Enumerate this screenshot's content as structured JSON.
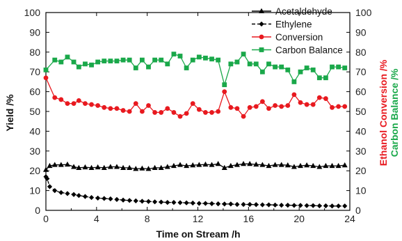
{
  "chart_data": {
    "type": "line",
    "title": "",
    "xlabel": "Time on Stream /h",
    "ylabel_left": "Yield /%",
    "ylabel_right_1": "Ethanol Conversion /%",
    "ylabel_right_2": "Carbon Balance /%",
    "xlim": [
      0,
      24
    ],
    "ylim": [
      0,
      100
    ],
    "y2lim": [
      0,
      100
    ],
    "x_ticks": [
      0,
      4,
      8,
      12,
      16,
      20,
      24
    ],
    "y_ticks": [
      0,
      10,
      20,
      30,
      40,
      50,
      60,
      70,
      80,
      90,
      100
    ],
    "grid": false,
    "legend_position": "top-right",
    "colors": {
      "acetaldehyde": "#000000",
      "ethylene": "#000000",
      "conversion": "#e8191f",
      "carbon_balance": "#1aa84a",
      "conversion_axis_label": "#e8191f",
      "carbon_balance_axis_label": "#1aa84a"
    },
    "series": [
      {
        "name": "Acetaldehyde",
        "axis": "left",
        "marker": "triangle",
        "line": "solid",
        "x": [
          0,
          0.3,
          0.7,
          1.2,
          1.7,
          2.2,
          2.6,
          3.1,
          3.6,
          4.1,
          4.6,
          5.1,
          5.6,
          6.1,
          6.6,
          7.1,
          7.6,
          8.1,
          8.6,
          9.1,
          9.6,
          10.1,
          10.6,
          11.1,
          11.6,
          12.1,
          12.6,
          13.1,
          13.6,
          14.1,
          14.6,
          15.1,
          15.6,
          16.1,
          16.6,
          17.1,
          17.6,
          18.1,
          18.6,
          19.1,
          19.6,
          20.1,
          20.6,
          21.1,
          21.6,
          22.1,
          22.6,
          23.1,
          23.6
        ],
        "values": [
          20.5,
          22.5,
          23,
          23,
          23.2,
          22,
          21.5,
          21.8,
          21.5,
          21.8,
          21.5,
          22,
          22,
          21.5,
          21.5,
          21,
          21.2,
          21,
          21.5,
          21.5,
          22,
          22.5,
          23,
          22.5,
          22.8,
          23,
          23.2,
          23,
          23.5,
          21.5,
          22.5,
          23,
          23.5,
          23.5,
          23.2,
          23,
          22.5,
          23,
          23,
          22.8,
          22,
          22.5,
          22.8,
          22.5,
          22,
          22.5,
          22.5,
          22.5,
          22.8
        ]
      },
      {
        "name": "Ethylene",
        "axis": "left",
        "marker": "diamond",
        "line": "dashed",
        "x": [
          0,
          0.1,
          0.3,
          0.7,
          1.2,
          1.7,
          2.2,
          2.6,
          3.1,
          3.6,
          4.1,
          4.6,
          5.1,
          5.6,
          6.1,
          6.6,
          7.1,
          7.6,
          8.1,
          8.6,
          9.1,
          9.6,
          10.1,
          10.6,
          11.1,
          11.6,
          12.1,
          12.6,
          13.1,
          13.6,
          14.1,
          14.6,
          15.1,
          15.6,
          16.1,
          16.6,
          17.1,
          17.6,
          18.1,
          18.6,
          19.1,
          19.6,
          20.1,
          20.6,
          21.1,
          21.6,
          22.1,
          22.6,
          23.1,
          23.6
        ],
        "values": [
          17,
          16,
          12,
          10,
          9,
          8.5,
          8,
          7.5,
          7,
          6.5,
          6.2,
          6,
          5.8,
          5.5,
          5.2,
          5,
          4.8,
          4.6,
          4.5,
          4.3,
          4.2,
          4,
          4,
          3.9,
          3.8,
          3.7,
          3.5,
          3.5,
          3.4,
          3.3,
          3.2,
          3.2,
          3,
          3,
          3,
          2.9,
          2.8,
          2.8,
          2.7,
          2.6,
          2.6,
          2.5,
          2.5,
          2.4,
          2.4,
          2.3,
          2.3,
          2.2,
          2.2,
          2.2
        ]
      },
      {
        "name": "Conversion",
        "axis": "right",
        "marker": "circle",
        "line": "solid",
        "x": [
          0,
          0.7,
          1.2,
          1.7,
          2.2,
          2.6,
          3.1,
          3.6,
          4.1,
          4.6,
          5.1,
          5.6,
          6.1,
          6.6,
          7.1,
          7.6,
          8.1,
          8.6,
          9.1,
          9.6,
          10.1,
          10.6,
          11.1,
          11.6,
          12.1,
          12.6,
          13.1,
          13.6,
          14.1,
          14.6,
          15.1,
          15.6,
          16.1,
          16.6,
          17.1,
          17.6,
          18.1,
          18.6,
          19.1,
          19.6,
          20.1,
          20.6,
          21.1,
          21.6,
          22.1,
          22.6,
          23.1,
          23.6
        ],
        "values": [
          67,
          57,
          56,
          54,
          54,
          55.5,
          54,
          53.5,
          53,
          52,
          51.5,
          51.5,
          50.5,
          50,
          54,
          50,
          53,
          49.5,
          49.5,
          51.5,
          49.5,
          47.5,
          49,
          54,
          51,
          49.5,
          49.5,
          50,
          60,
          52,
          51.5,
          47.5,
          52,
          52.5,
          55,
          51.5,
          53,
          52.5,
          53,
          58.5,
          54.5,
          53.5,
          53.5,
          57,
          56.5,
          52,
          52.5,
          52.5
        ]
      },
      {
        "name": "Carbon Balance",
        "axis": "right",
        "marker": "square",
        "line": "solid",
        "x": [
          0,
          0.7,
          1.2,
          1.7,
          2.2,
          2.6,
          3.1,
          3.6,
          4.1,
          4.6,
          5.1,
          5.6,
          6.1,
          6.6,
          7.1,
          7.6,
          8.1,
          8.6,
          9.1,
          9.6,
          10.1,
          10.6,
          11.1,
          11.6,
          12.1,
          12.6,
          13.1,
          13.6,
          14.1,
          14.6,
          15.1,
          15.6,
          16.1,
          16.6,
          17.1,
          17.6,
          18.1,
          18.6,
          19.1,
          19.6,
          20.1,
          20.6,
          21.1,
          21.6,
          22.1,
          22.6,
          23.1,
          23.6
        ],
        "values": [
          71,
          76,
          75,
          77.5,
          75,
          72.5,
          74,
          73.5,
          75,
          75.5,
          75.5,
          75.5,
          76,
          76,
          72,
          76,
          72.5,
          76,
          76,
          74,
          79,
          78,
          72,
          76,
          77.5,
          77,
          76.5,
          76,
          63.5,
          74,
          75,
          79,
          74,
          74,
          70,
          74,
          72.5,
          72.5,
          71,
          65,
          70,
          72,
          71,
          67,
          67,
          72.5,
          72.5,
          72
        ]
      }
    ]
  }
}
